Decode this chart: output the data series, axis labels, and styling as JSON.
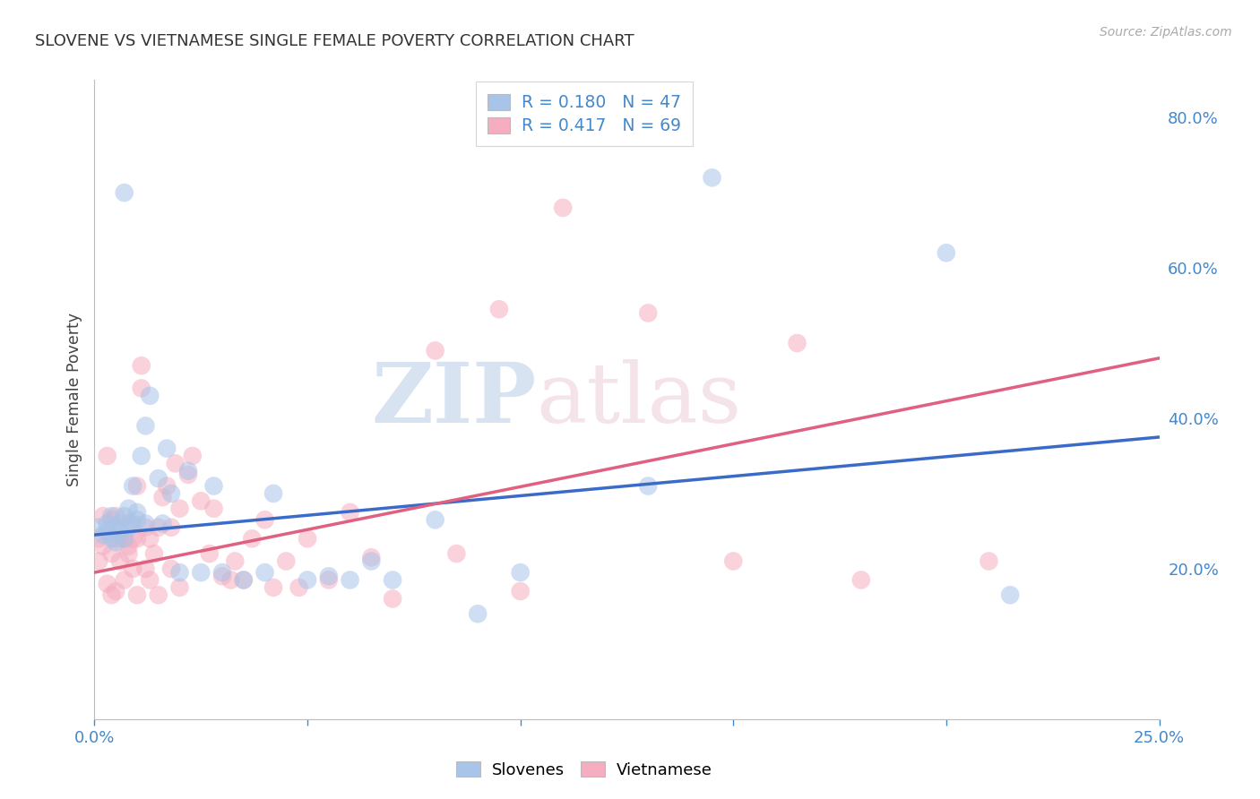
{
  "title": "SLOVENE VS VIETNAMESE SINGLE FEMALE POVERTY CORRELATION CHART",
  "source": "Source: ZipAtlas.com",
  "ylabel": "Single Female Poverty",
  "xlim": [
    0.0,
    0.25
  ],
  "ylim": [
    0.0,
    0.85
  ],
  "xticks": [
    0.0,
    0.05,
    0.1,
    0.15,
    0.2,
    0.25
  ],
  "xticklabels": [
    "0.0%",
    "",
    "",
    "",
    "",
    "25.0%"
  ],
  "yticks_right": [
    0.0,
    0.2,
    0.4,
    0.6,
    0.8
  ],
  "yticklabels_right": [
    "",
    "20.0%",
    "40.0%",
    "60.0%",
    "80.0%"
  ],
  "slovene_R": 0.18,
  "slovene_N": 47,
  "vietnamese_R": 0.417,
  "vietnamese_N": 69,
  "slovene_color": "#a8c4e8",
  "vietnamese_color": "#f5adc0",
  "slovene_line_color": "#3a6bc9",
  "vietnamese_line_color": "#e06080",
  "tick_color": "#4488cc",
  "legend_text_dark": "#222222",
  "legend_text_blue": "#4488cc",
  "grid_color": "#d8d8d8",
  "spine_color": "#bbbbbb",
  "slovene_x": [
    0.001,
    0.002,
    0.003,
    0.003,
    0.004,
    0.004,
    0.005,
    0.005,
    0.006,
    0.006,
    0.007,
    0.007,
    0.007,
    0.008,
    0.008,
    0.009,
    0.009,
    0.01,
    0.01,
    0.011,
    0.012,
    0.012,
    0.013,
    0.015,
    0.016,
    0.017,
    0.018,
    0.02,
    0.022,
    0.025,
    0.028,
    0.03,
    0.035,
    0.04,
    0.042,
    0.05,
    0.055,
    0.06,
    0.065,
    0.07,
    0.08,
    0.09,
    0.1,
    0.13,
    0.145,
    0.2,
    0.215
  ],
  "slovene_y": [
    0.255,
    0.245,
    0.25,
    0.26,
    0.24,
    0.27,
    0.255,
    0.235,
    0.25,
    0.26,
    0.7,
    0.27,
    0.24,
    0.28,
    0.255,
    0.31,
    0.26,
    0.275,
    0.265,
    0.35,
    0.39,
    0.26,
    0.43,
    0.32,
    0.26,
    0.36,
    0.3,
    0.195,
    0.33,
    0.195,
    0.31,
    0.195,
    0.185,
    0.195,
    0.3,
    0.185,
    0.19,
    0.185,
    0.21,
    0.185,
    0.265,
    0.14,
    0.195,
    0.31,
    0.72,
    0.62,
    0.165
  ],
  "vietnamese_x": [
    0.001,
    0.001,
    0.002,
    0.002,
    0.003,
    0.003,
    0.004,
    0.004,
    0.004,
    0.005,
    0.005,
    0.005,
    0.006,
    0.006,
    0.007,
    0.007,
    0.008,
    0.008,
    0.008,
    0.009,
    0.009,
    0.01,
    0.01,
    0.01,
    0.011,
    0.011,
    0.012,
    0.012,
    0.013,
    0.013,
    0.014,
    0.015,
    0.015,
    0.016,
    0.017,
    0.018,
    0.018,
    0.019,
    0.02,
    0.02,
    0.022,
    0.023,
    0.025,
    0.027,
    0.028,
    0.03,
    0.032,
    0.033,
    0.035,
    0.037,
    0.04,
    0.042,
    0.045,
    0.048,
    0.05,
    0.055,
    0.06,
    0.065,
    0.07,
    0.08,
    0.085,
    0.095,
    0.1,
    0.11,
    0.13,
    0.15,
    0.165,
    0.18,
    0.21
  ],
  "vietnamese_y": [
    0.24,
    0.21,
    0.27,
    0.23,
    0.18,
    0.35,
    0.22,
    0.165,
    0.265,
    0.17,
    0.24,
    0.27,
    0.24,
    0.21,
    0.24,
    0.185,
    0.22,
    0.23,
    0.26,
    0.24,
    0.2,
    0.165,
    0.24,
    0.31,
    0.44,
    0.47,
    0.2,
    0.255,
    0.24,
    0.185,
    0.22,
    0.165,
    0.255,
    0.295,
    0.31,
    0.2,
    0.255,
    0.34,
    0.175,
    0.28,
    0.325,
    0.35,
    0.29,
    0.22,
    0.28,
    0.19,
    0.185,
    0.21,
    0.185,
    0.24,
    0.265,
    0.175,
    0.21,
    0.175,
    0.24,
    0.185,
    0.275,
    0.215,
    0.16,
    0.49,
    0.22,
    0.545,
    0.17,
    0.68,
    0.54,
    0.21,
    0.5,
    0.185,
    0.21
  ]
}
